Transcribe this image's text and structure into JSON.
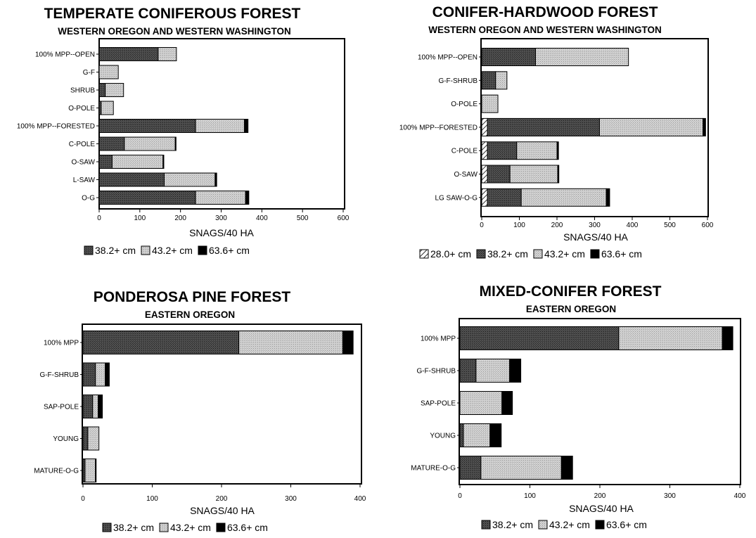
{
  "colors": {
    "dark": "#3c3c3c",
    "light": "#c4c4c4",
    "black": "#000000",
    "hatch_bg": "#ffffff"
  },
  "chart_data": [
    {
      "type": "bar",
      "orientation": "horizontal",
      "stacked": true,
      "title": "TEMPERATE CONIFEROUS FOREST",
      "subtitle": "WESTERN OREGON AND WESTERN WASHINGTON",
      "xlabel": "SNAGS/40 HA",
      "xlim": [
        0,
        600
      ],
      "xticks": [
        "0",
        "100",
        "200",
        "300",
        "400",
        "500",
        "600"
      ],
      "categories": [
        "100% MPP--OPEN",
        "G-F",
        "SHRUB",
        "O-POLE",
        "100% MPP--FORESTED",
        "C-POLE",
        "O-SAW",
        "L-SAW",
        "O-G"
      ],
      "series": [
        {
          "name": "38.2+ cm",
          "fill": "dark",
          "values": [
            145,
            0,
            15,
            5,
            237,
            62,
            32,
            160,
            237
          ]
        },
        {
          "name": "43.2+ cm",
          "fill": "light",
          "values": [
            45,
            47,
            45,
            30,
            120,
            125,
            125,
            125,
            123
          ]
        },
        {
          "name": "63.6+ cm",
          "fill": "black",
          "values": [
            0,
            0,
            0,
            0,
            9,
            2,
            2,
            4,
            8
          ]
        }
      ],
      "legend": "bottom"
    },
    {
      "type": "bar",
      "orientation": "horizontal",
      "stacked": true,
      "title": "CONIFER-HARDWOOD FOREST",
      "subtitle": "WESTERN OREGON AND WESTERN WASHINGTON",
      "xlabel": "SNAGS/40 HA",
      "xlim": [
        0,
        600
      ],
      "xticks": [
        "0",
        "100",
        "200",
        "300",
        "400",
        "500",
        "600"
      ],
      "categories": [
        "100% MPP--OPEN",
        "G-F-SHRUB",
        "O-POLE",
        "100% MPP--FORESTED",
        "C-POLE",
        "O-SAW",
        "LG SAW-O-G"
      ],
      "series": [
        {
          "name": "28.0+ cm",
          "fill": "hatch",
          "values": [
            0,
            0,
            0,
            15,
            15,
            15,
            15
          ]
        },
        {
          "name": "38.2+ cm",
          "fill": "dark",
          "values": [
            143,
            37,
            0,
            298,
            78,
            60,
            90
          ]
        },
        {
          "name": "43.2+ cm",
          "fill": "light",
          "values": [
            247,
            30,
            43,
            275,
            107,
            127,
            226
          ]
        },
        {
          "name": "63.6+ cm",
          "fill": "black",
          "values": [
            0,
            0,
            0,
            7,
            4,
            3,
            9
          ]
        }
      ],
      "legend": "bottom"
    },
    {
      "type": "bar",
      "orientation": "horizontal",
      "stacked": true,
      "title": "PONDEROSA PINE FOREST",
      "subtitle": "EASTERN OREGON",
      "xlabel": "SNAGS/40 HA",
      "xlim": [
        0,
        400
      ],
      "xticks": [
        "0",
        "100",
        "200",
        "300",
        "400"
      ],
      "categories": [
        "100% MPP",
        "G-F-SHRUB",
        "SAP-POLE",
        "YOUNG",
        "MATURE-O-G"
      ],
      "series": [
        {
          "name": "38.2+ cm",
          "fill": "dark",
          "values": [
            225,
            18,
            14,
            7,
            3
          ]
        },
        {
          "name": "43.2+ cm",
          "fill": "light",
          "values": [
            150,
            14,
            8,
            16,
            15
          ]
        },
        {
          "name": "63.6+ cm",
          "fill": "black",
          "values": [
            15,
            6,
            6,
            0,
            1
          ]
        }
      ],
      "legend": "bottom"
    },
    {
      "type": "bar",
      "orientation": "horizontal",
      "stacked": true,
      "title": "MIXED-CONIFER FOREST",
      "subtitle": "EASTERN OREGON",
      "xlabel": "SNAGS/40 HA",
      "xlim": [
        0,
        400
      ],
      "xticks": [
        "0",
        "100",
        "200",
        "300",
        "400"
      ],
      "categories": [
        "100% MPP",
        "G-F-SHRUB",
        "SAP-POLE",
        "YOUNG",
        "MATURE-O-G"
      ],
      "series": [
        {
          "name": "38.2+ cm",
          "fill": "dark",
          "values": [
            227,
            23,
            0,
            5,
            30
          ]
        },
        {
          "name": "43.2+ cm",
          "fill": "light",
          "values": [
            148,
            48,
            60,
            38,
            115
          ]
        },
        {
          "name": "63.6+ cm",
          "fill": "black",
          "values": [
            15,
            16,
            15,
            16,
            16
          ]
        }
      ],
      "legend": "bottom"
    }
  ]
}
